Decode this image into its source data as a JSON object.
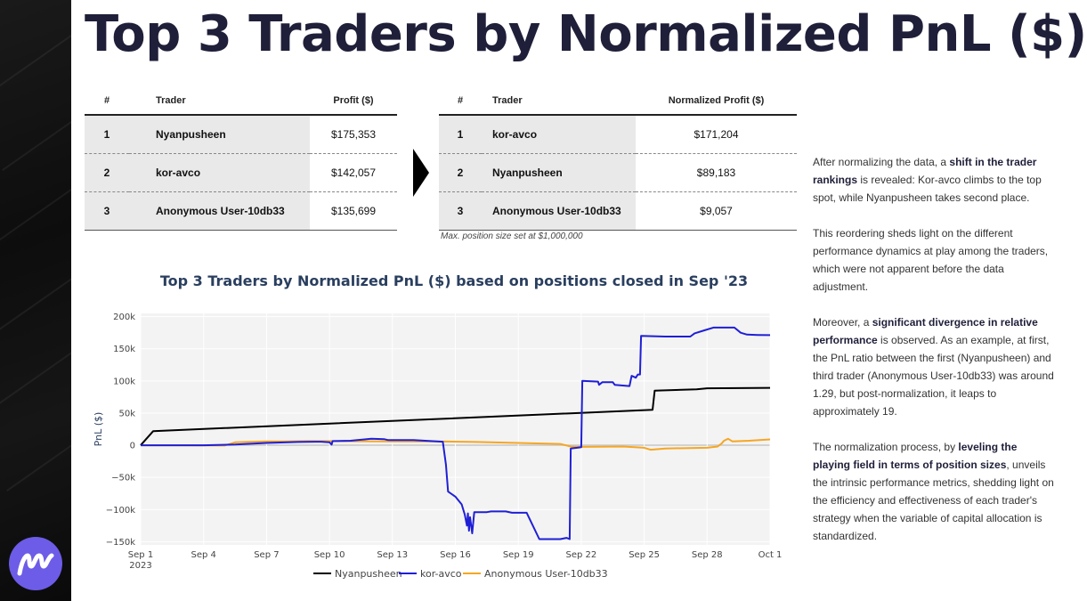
{
  "title": "Top 3 Traders by Normalized PnL ($)",
  "brand": {
    "accent": "#6c5ce7",
    "logo_name": "m-logo"
  },
  "table_left": {
    "headers": [
      "#",
      "Trader",
      "Profit ($)"
    ],
    "rows": [
      [
        "1",
        "Nyanpusheen",
        "$175,353"
      ],
      [
        "2",
        "kor-avco",
        "$142,057"
      ],
      [
        "3",
        "Anonymous User-10db33",
        "$135,699"
      ]
    ]
  },
  "table_right": {
    "headers": [
      "#",
      "Trader",
      "Normalized Profit ($)"
    ],
    "rows": [
      [
        "1",
        "kor-avco",
        "$171,204"
      ],
      [
        "2",
        "Nyanpusheen",
        "$89,183"
      ],
      [
        "3",
        "Anonymous User-10db33",
        "$9,057"
      ]
    ],
    "footnote": "Max. position size set at $1,000,000"
  },
  "side_text": {
    "p1_a": "After normalizing the data, a ",
    "p1_b": "shift in the trader rankings",
    "p1_c": " is revealed: Kor-avco climbs to the top spot, while Nyanpusheen takes second place.",
    "p2": "This reordering sheds light on the different performance dynamics at play among the traders, which were not apparent before the data adjustment.",
    "p3_a": "Moreover, a ",
    "p3_b": "significant divergence in relative performance",
    "p3_c": " is observed. As an example, at first, the PnL ratio between the first (Nyanpusheen) and third trader (Anonymous User-10db33) was around 1.29, but post-normalization, it leaps to approximately 19.",
    "p4_a": "The normalization process, by ",
    "p4_b": "leveling the playing field in terms of position sizes",
    "p4_c": ", unveils the intrinsic performance metrics, shedding light on the efficiency and effectiveness of each trader's strategy when the variable of capital allocation is standardized."
  },
  "chart_data": {
    "type": "line",
    "title": "Top 3 Traders by Normalized PnL ($) based on positions closed in Sep '23",
    "xlabel": "",
    "ylabel": "PnL ($)",
    "xlim": [
      1,
      31
    ],
    "ylim": [
      -155000,
      205000
    ],
    "x_ticks": [
      1,
      4,
      7,
      10,
      13,
      16,
      19,
      22,
      25,
      28,
      31
    ],
    "x_tick_labels": [
      "Sep 1",
      "Sep 4",
      "Sep 7",
      "Sep 10",
      "Sep 13",
      "Sep 16",
      "Sep 19",
      "Sep 22",
      "Sep 25",
      "Sep 28",
      "Oct 1"
    ],
    "x_tick_sublabel": "2023",
    "y_ticks": [
      -150000,
      -100000,
      -50000,
      0,
      50000,
      100000,
      150000,
      200000
    ],
    "y_tick_labels": [
      "−150k",
      "−100k",
      "−50k",
      "0",
      "50k",
      "100k",
      "150k",
      "200k"
    ],
    "grid": true,
    "legend_position": "bottom",
    "series": [
      {
        "name": "Nyanpusheen",
        "color": "#000000",
        "points": [
          [
            1,
            0
          ],
          [
            1.6,
            22000
          ],
          [
            25.4,
            55000
          ],
          [
            25.5,
            85000
          ],
          [
            27.5,
            87000
          ],
          [
            28,
            88500
          ],
          [
            31,
            89183
          ]
        ]
      },
      {
        "name": "kor-avco",
        "color": "#1f1fd6",
        "points": [
          [
            1,
            0
          ],
          [
            4,
            0
          ],
          [
            5.5,
            1000
          ],
          [
            7,
            3500
          ],
          [
            8.5,
            5000
          ],
          [
            9.3,
            5500
          ],
          [
            9.6,
            5500
          ],
          [
            10,
            4500
          ],
          [
            10.1,
            1000
          ],
          [
            10.15,
            6500
          ],
          [
            11,
            7000
          ],
          [
            12,
            10000
          ],
          [
            12.6,
            9500
          ],
          [
            12.8,
            8000
          ],
          [
            14,
            8000
          ],
          [
            15.4,
            5500
          ],
          [
            15.55,
            -30000
          ],
          [
            15.65,
            -72000
          ],
          [
            16,
            -80000
          ],
          [
            16.3,
            -92000
          ],
          [
            16.45,
            -108000
          ],
          [
            16.55,
            -125000
          ],
          [
            16.6,
            -106000
          ],
          [
            16.65,
            -133000
          ],
          [
            16.7,
            -112000
          ],
          [
            16.8,
            -137000
          ],
          [
            16.9,
            -104000
          ],
          [
            17.5,
            -104000
          ],
          [
            17.7,
            -103000
          ],
          [
            18.4,
            -103000
          ],
          [
            18.7,
            -105000
          ],
          [
            19.4,
            -105000
          ],
          [
            20,
            -146000
          ],
          [
            21,
            -146000
          ],
          [
            21.3,
            -144000
          ],
          [
            21.45,
            -146000
          ],
          [
            21.5,
            -5000
          ],
          [
            21.8,
            -4000
          ],
          [
            22,
            -3000
          ],
          [
            22.05,
            100000
          ],
          [
            22.8,
            99000
          ],
          [
            22.85,
            94000
          ],
          [
            23,
            98000
          ],
          [
            23.5,
            98000
          ],
          [
            23.6,
            94000
          ],
          [
            24.3,
            92000
          ],
          [
            24.4,
            108000
          ],
          [
            24.6,
            105000
          ],
          [
            24.7,
            110000
          ],
          [
            24.8,
            110000
          ],
          [
            24.85,
            170000
          ],
          [
            26,
            169000
          ],
          [
            27.2,
            169000
          ],
          [
            27.4,
            174000
          ],
          [
            27.8,
            178000
          ],
          [
            28.3,
            183000
          ],
          [
            29.3,
            183000
          ],
          [
            29.6,
            175000
          ],
          [
            29.9,
            172000
          ],
          [
            30.4,
            171500
          ],
          [
            31,
            171204
          ]
        ]
      },
      {
        "name": "Anonymous User-10db33",
        "color": "#f5a623",
        "points": [
          [
            1,
            0
          ],
          [
            3,
            0
          ],
          [
            5,
            -500
          ],
          [
            5.5,
            4500
          ],
          [
            6,
            5000
          ],
          [
            7,
            6000
          ],
          [
            8,
            6000
          ],
          [
            9,
            6500
          ],
          [
            13,
            6000
          ],
          [
            15,
            6000
          ],
          [
            17,
            5000
          ],
          [
            21,
            2000
          ],
          [
            21.5,
            -2000
          ],
          [
            22,
            -2500
          ],
          [
            24,
            -2000
          ],
          [
            25,
            -4000
          ],
          [
            25.3,
            -7000
          ],
          [
            26,
            -5000
          ],
          [
            28,
            -4000
          ],
          [
            28.5,
            -2000
          ],
          [
            28.7,
            3000
          ],
          [
            28.8,
            7000
          ],
          [
            29,
            10000
          ],
          [
            29.2,
            6000
          ],
          [
            30,
            7000
          ],
          [
            31,
            9057
          ]
        ]
      }
    ]
  }
}
